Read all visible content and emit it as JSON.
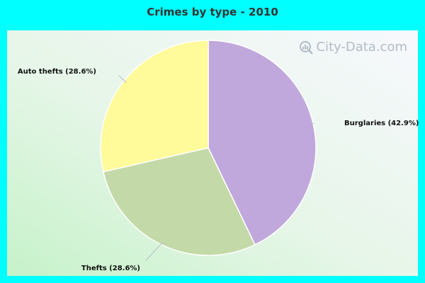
{
  "chart_data": {
    "type": "pie",
    "title": "Crimes by type - 2010",
    "slices": [
      {
        "label": "Burglaries (42.9%)",
        "value": 42.9,
        "color": "#c0a8dc"
      },
      {
        "label": "Thefts (28.6%)",
        "value": 28.6,
        "color": "#c4d9a8"
      },
      {
        "label": "Auto thefts (28.6%)",
        "value": 28.6,
        "color": "#fffa9a"
      }
    ]
  },
  "watermark": "City-Data.com",
  "colors": {
    "background": "#00ffff",
    "leader_line": "#b8b8c8"
  }
}
